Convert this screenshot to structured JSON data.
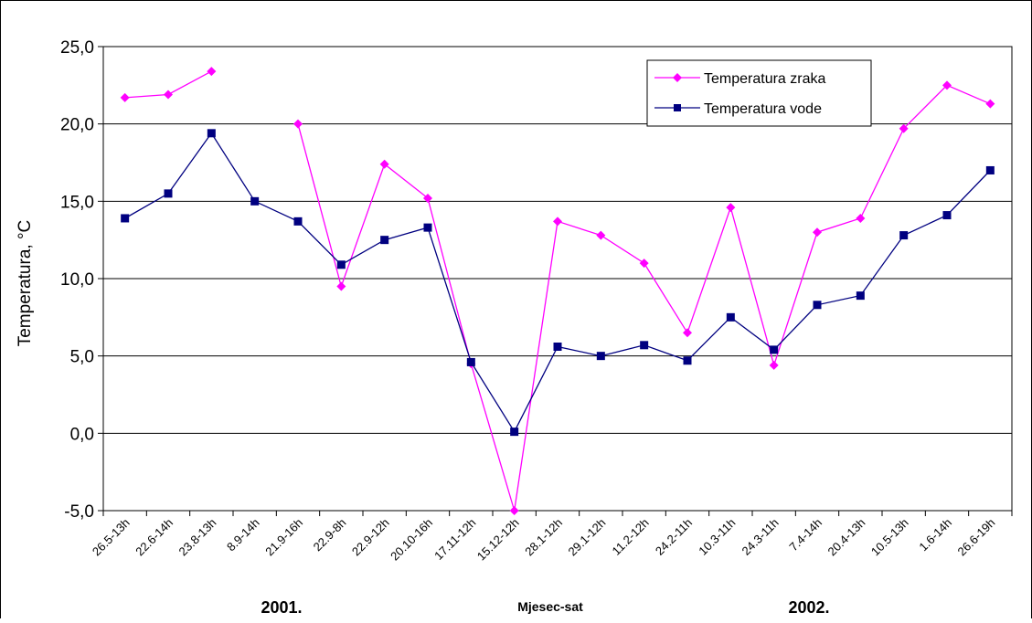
{
  "chart_data": {
    "type": "line",
    "title": "",
    "xlabel": "Mjesec-sat",
    "ylabel": "Temperatura, °C",
    "ylim": [
      -5,
      25
    ],
    "yticks": [
      -5,
      0,
      5,
      10,
      15,
      20,
      25
    ],
    "ytick_labels": [
      "-5,0",
      "0,0",
      "5,0",
      "10,0",
      "15,0",
      "20,0",
      "25,0"
    ],
    "grid": "horizontal",
    "legend": "top-right",
    "year_labels": [
      "2001.",
      "2002."
    ],
    "categories": [
      "26.5-13h",
      "22.6-14h",
      "23.8-13h",
      "8.9-14h",
      "21.9-16h",
      "22.9-8h",
      "22.9-12h",
      "20.10-16h",
      "17.11-12h",
      "15.12-12h",
      "28.1-12h",
      "29.1-12h",
      "11.2-12h",
      "24.2-11h",
      "10.3-11h",
      "24.3-11h",
      "7.4-14h",
      "20.4-13h",
      "10.5-13h",
      "1.6-14h",
      "26.6-19h"
    ],
    "series": [
      {
        "name": "Temperatura zraka",
        "color": "#ff00ff",
        "marker": "diamond",
        "values": [
          21.7,
          21.9,
          23.4,
          null,
          20.0,
          9.5,
          17.4,
          15.2,
          4.5,
          -5.0,
          13.7,
          12.8,
          11.0,
          6.5,
          14.6,
          4.4,
          13.0,
          13.9,
          19.7,
          22.5,
          21.3
        ]
      },
      {
        "name": "Temperatura vode",
        "color": "#000080",
        "marker": "square",
        "values": [
          13.9,
          15.5,
          19.4,
          15.0,
          13.7,
          10.9,
          12.5,
          13.3,
          4.6,
          0.1,
          5.6,
          5.0,
          5.7,
          4.7,
          7.5,
          5.4,
          8.3,
          8.9,
          12.8,
          14.1,
          17.0
        ]
      }
    ]
  }
}
